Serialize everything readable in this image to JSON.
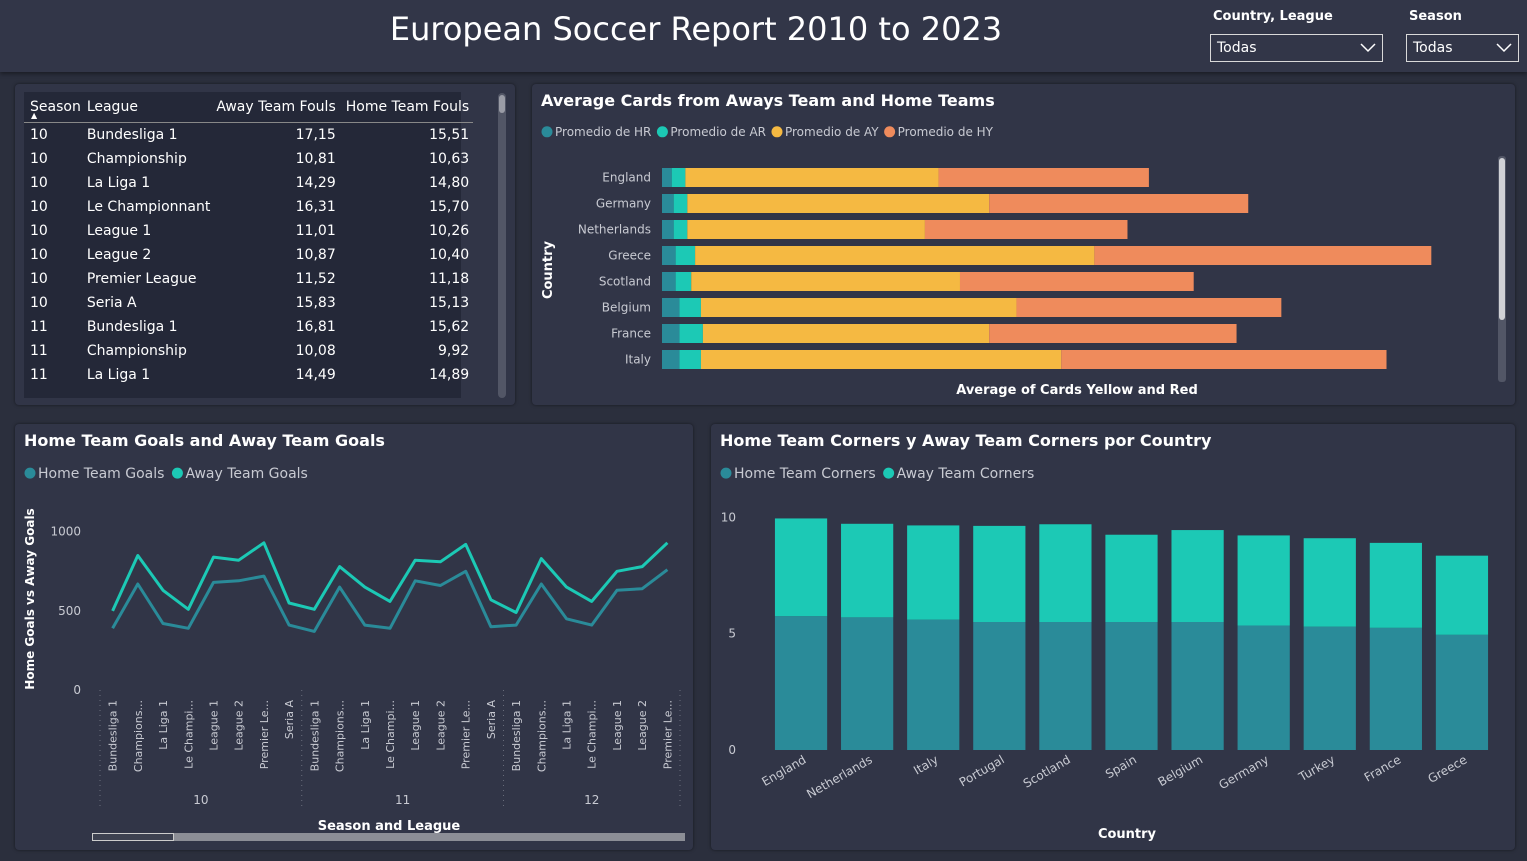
{
  "header": {
    "title": "European Soccer Report 2010 to 2023",
    "slicer_country_label": "Country, League",
    "slicer_country_value": "Todas",
    "slicer_season_label": "Season",
    "slicer_season_value": "Todas"
  },
  "fouls_table": {
    "columns": [
      "Season",
      "League",
      "Away Team Fouls",
      "Home Team Fouls"
    ],
    "rows": [
      [
        "10",
        "Bundesliga 1",
        "17,15",
        "15,51"
      ],
      [
        "10",
        "Championship",
        "10,81",
        "10,63"
      ],
      [
        "10",
        "La Liga 1",
        "14,29",
        "14,80"
      ],
      [
        "10",
        "Le Championnant",
        "16,31",
        "15,70"
      ],
      [
        "10",
        "League 1",
        "11,01",
        "10,26"
      ],
      [
        "10",
        "League 2",
        "10,87",
        "10,40"
      ],
      [
        "10",
        "Premier League",
        "11,52",
        "11,18"
      ],
      [
        "10",
        "Seria A",
        "15,83",
        "15,13"
      ],
      [
        "11",
        "Bundesliga 1",
        "16,81",
        "15,62"
      ],
      [
        "11",
        "Championship",
        "10,08",
        "9,92"
      ],
      [
        "11",
        "La Liga 1",
        "14,49",
        "14,89"
      ]
    ]
  },
  "chart_data": [
    {
      "type": "bar",
      "orientation": "horizontal",
      "stacked": true,
      "title": "Average Cards from Aways Team and Home Teams",
      "xlabel": "Average of Cards Yellow and Red",
      "ylabel": "Country",
      "categories": [
        "England",
        "Germany",
        "Netherlands",
        "Greece",
        "Scotland",
        "Belgium",
        "France",
        "Italy"
      ],
      "series": [
        {
          "name": "Promedio de HR",
          "color": "#2a8b99",
          "values": [
            0.05,
            0.06,
            0.06,
            0.07,
            0.07,
            0.09,
            0.09,
            0.09
          ]
        },
        {
          "name": "Promedio de AR",
          "color": "#1cc9b5",
          "values": [
            0.07,
            0.07,
            0.07,
            0.1,
            0.08,
            0.11,
            0.12,
            0.11
          ]
        },
        {
          "name": "Promedio de AY",
          "color": "#f5b942",
          "values": [
            1.3,
            1.55,
            1.22,
            2.05,
            1.38,
            1.62,
            1.47,
            1.85
          ]
        },
        {
          "name": "Promedio de HY",
          "color": "#ef8b5c",
          "values": [
            1.08,
            1.33,
            1.04,
            1.73,
            1.2,
            1.36,
            1.27,
            1.67
          ]
        }
      ],
      "xlim": [
        0,
        4.2
      ]
    },
    {
      "type": "line",
      "title": "Home Team Goals and Away Team Goals",
      "xlabel": "Season and League",
      "ylabel": "Home Goals vs Away Goals",
      "groups": [
        {
          "season": "10",
          "leagues": [
            "Bundesliga 1",
            "Champions...",
            "La Liga 1",
            "Le Champi...",
            "League 1",
            "League 2",
            "Premier Le...",
            "Seria A"
          ]
        },
        {
          "season": "11",
          "leagues": [
            "Bundesliga 1",
            "Champions...",
            "La Liga 1",
            "Le Champi...",
            "League 1",
            "League 2",
            "Premier Le...",
            "Seria A"
          ]
        },
        {
          "season": "12",
          "leagues": [
            "Bundesliga 1",
            "Champions...",
            "La Liga 1",
            "Le Champi...",
            "League 1",
            "League 2",
            "Premier Le..."
          ]
        }
      ],
      "series": [
        {
          "name": "Home Team Goals",
          "color": "#2a8b99",
          "values": [
            390,
            670,
            420,
            390,
            680,
            690,
            720,
            410,
            370,
            650,
            410,
            390,
            690,
            660,
            750,
            400,
            410,
            670,
            450,
            410,
            630,
            640,
            760
          ]
        },
        {
          "name": "Away Team Goals",
          "color": "#1cc9b5",
          "values": [
            500,
            850,
            630,
            510,
            840,
            820,
            930,
            550,
            510,
            780,
            650,
            560,
            820,
            810,
            920,
            570,
            490,
            830,
            650,
            560,
            750,
            780,
            930
          ]
        }
      ],
      "yticks": [
        0,
        500,
        1000
      ],
      "ylim": [
        0,
        1150
      ]
    },
    {
      "type": "bar",
      "stacked": true,
      "title": "Home Team Corners y Away Team Corners por Country",
      "xlabel": "Country",
      "ylabel": "",
      "categories": [
        "England",
        "Netherlands",
        "Italy",
        "Portugal",
        "Scotland",
        "Spain",
        "Belgium",
        "Germany",
        "Turkey",
        "France",
        "Greece"
      ],
      "series": [
        {
          "name": "Home Team Corners",
          "color": "#2a8b99",
          "values": [
            5.75,
            5.7,
            5.6,
            5.5,
            5.5,
            5.5,
            5.5,
            5.35,
            5.3,
            5.25,
            4.95
          ]
        },
        {
          "name": "Away Team Corners",
          "color": "#1cc9b5",
          "values": [
            4.2,
            4.02,
            4.05,
            4.13,
            4.2,
            3.75,
            3.95,
            3.87,
            3.8,
            3.65,
            3.4
          ]
        }
      ],
      "yticks": [
        0,
        5,
        10
      ],
      "ylim": [
        0,
        11
      ]
    }
  ]
}
